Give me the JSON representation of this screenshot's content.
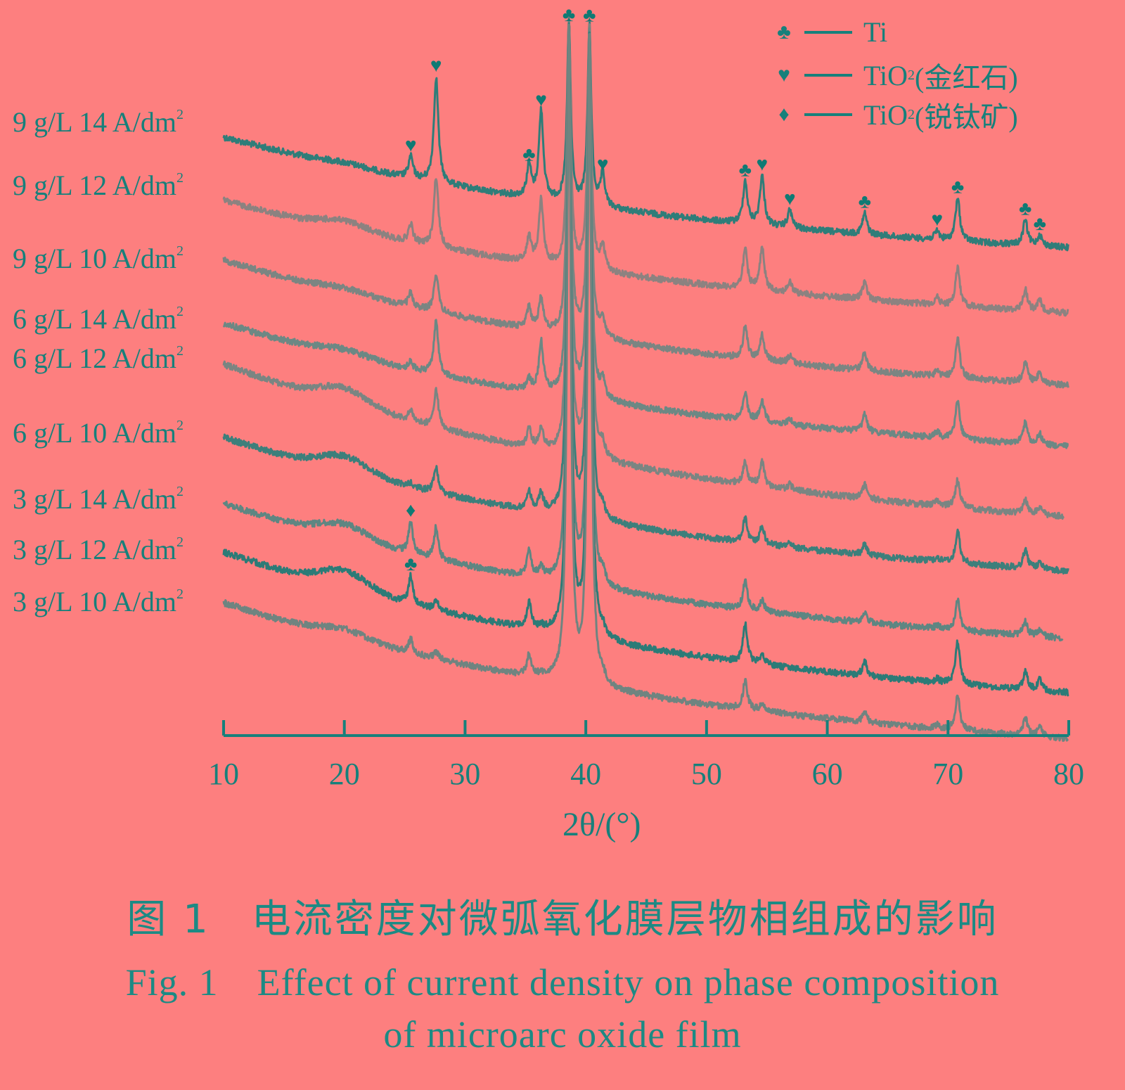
{
  "chart_data": {
    "type": "line",
    "xlabel": "2θ/(°)",
    "ylabel": "",
    "xlim": [
      10,
      80
    ],
    "x_ticks": [
      "10",
      "20",
      "30",
      "40",
      "50",
      "60",
      "70",
      "80"
    ],
    "grid": false,
    "stacked_offset": true,
    "legend": {
      "placement": "top-right",
      "entries": [
        {
          "symbol": "♣",
          "icon": "club-icon",
          "label": "Ti",
          "sub": ""
        },
        {
          "symbol": "♥",
          "icon": "heart-icon",
          "label": "TiO",
          "sub": "2",
          "suffix": "(金红石)"
        },
        {
          "symbol": "♦",
          "icon": "diamond-icon",
          "label": "TiO",
          "sub": "2",
          "suffix": "(锐钛矿)"
        }
      ]
    },
    "peak_positions": [
      25.5,
      27.6,
      35.3,
      36.3,
      38.6,
      40.3,
      41.4,
      53.2,
      54.6,
      56.9,
      63.1,
      69.1,
      70.8,
      76.4,
      77.6
    ],
    "series": [
      {
        "name": "9 g/L 14 A/dm",
        "sup": "2",
        "color": "#2f7d79",
        "baseline": [
          195,
          352
        ],
        "hump": 4,
        "x_end": 80,
        "peaks": [
          30,
          150,
          45,
          125,
          255,
          255,
          45,
          60,
          70,
          25,
          30,
          12,
          60,
          35,
          15
        ]
      },
      {
        "name": "9 g/L 12 A/dm",
        "sup": "2",
        "color": "#8c8280",
        "baseline": [
          285,
          445
        ],
        "hump": 12,
        "x_end": 80,
        "peaks": [
          25,
          100,
          35,
          90,
          350,
          350,
          35,
          55,
          60,
          15,
          25,
          10,
          55,
          30,
          15
        ]
      },
      {
        "name": "9 g/L 10 A/dm",
        "sup": "2",
        "color": "#7b8582",
        "baseline": [
          370,
          548
        ],
        "hump": 6,
        "x_end": 80,
        "peaks": [
          20,
          55,
          30,
          45,
          445,
          445,
          25,
          45,
          35,
          10,
          25,
          8,
          55,
          30,
          15
        ]
      },
      {
        "name": "6 g/L 14 A/dm",
        "sup": "2",
        "color": "#6c8884",
        "baseline": [
          460,
          635
        ],
        "hump": 8,
        "x_end": 80,
        "peaks": [
          10,
          75,
          15,
          70,
          530,
          530,
          25,
          40,
          30,
          8,
          25,
          8,
          55,
          30,
          15
        ]
      },
      {
        "name": "6 g/L 12 A/dm",
        "sup": "2",
        "color": "#7a8582",
        "baseline": [
          518,
          735
        ],
        "hump": 22,
        "x_end": 79.6,
        "peaks": [
          15,
          55,
          25,
          30,
          605,
          605,
          20,
          30,
          35,
          8,
          20,
          8,
          40,
          20,
          10
        ]
      },
      {
        "name": "6 g/L 10 A/dm",
        "sup": "2",
        "color": "#3d7f7b",
        "baseline": [
          622,
          812
        ],
        "hump": 22,
        "x_end": 80,
        "peaks": [
          5,
          35,
          25,
          25,
          695,
          695,
          15,
          35,
          25,
          6,
          15,
          5,
          45,
          25,
          10
        ]
      },
      {
        "name": "3 g/L 14 A/dm",
        "sup": "2",
        "color": "#5e8682",
        "baseline": [
          716,
          908
        ],
        "hump": 20,
        "x_end": 79.5,
        "peaks": [
          45,
          45,
          35,
          15,
          785,
          785,
          15,
          40,
          15,
          0,
          15,
          5,
          45,
          20,
          10
        ]
      },
      {
        "name": "3 g/L 12 A/dm",
        "sup": "2",
        "color": "#2c7b77",
        "baseline": [
          785,
          985
        ],
        "hump": 25,
        "x_end": 80,
        "peaks": [
          40,
          15,
          35,
          5,
          855,
          855,
          10,
          55,
          15,
          0,
          20,
          5,
          60,
          25,
          15
        ]
      },
      {
        "name": "3 g/L 10 A/dm",
        "sup": "2",
        "color": "#6f8480",
        "baseline": [
          857,
          1050
        ],
        "hump": 12,
        "x_end": 80,
        "peaks": [
          20,
          10,
          30,
          5,
          925,
          925,
          10,
          40,
          10,
          0,
          15,
          5,
          50,
          25,
          12
        ]
      }
    ],
    "annotations": [
      {
        "symbol": "♥",
        "x": 25.5,
        "series": 0
      },
      {
        "symbol": "♥",
        "x": 27.6,
        "series": 0
      },
      {
        "symbol": "♣",
        "x": 35.3,
        "series": 0
      },
      {
        "symbol": "♥",
        "x": 36.3,
        "series": 0
      },
      {
        "symbol": "♣",
        "x": 38.6,
        "series": 0
      },
      {
        "symbol": "♣",
        "x": 40.3,
        "series": 0
      },
      {
        "symbol": "♥",
        "x": 41.4,
        "series": 0
      },
      {
        "symbol": "♣",
        "x": 53.2,
        "series": 0
      },
      {
        "symbol": "♥",
        "x": 54.6,
        "series": 0
      },
      {
        "symbol": "♥",
        "x": 56.9,
        "series": 0
      },
      {
        "symbol": "♣",
        "x": 63.1,
        "series": 0
      },
      {
        "symbol": "♥",
        "x": 69.1,
        "series": 0
      },
      {
        "symbol": "♣",
        "x": 70.8,
        "series": 0
      },
      {
        "symbol": "♣",
        "x": 76.4,
        "series": 0
      },
      {
        "symbol": "♣",
        "x": 77.6,
        "series": 0
      },
      {
        "symbol": "♦",
        "x": 25.5,
        "series": 6
      },
      {
        "symbol": "♣",
        "x": 25.5,
        "series": 7
      }
    ]
  },
  "caption": {
    "cn": "图 1　电流密度对微弧氧化膜层物相组成的影响",
    "en_line1": "Fig. 1　Effect of current density on phase composition",
    "en_line2": "of microarc oxide film"
  }
}
